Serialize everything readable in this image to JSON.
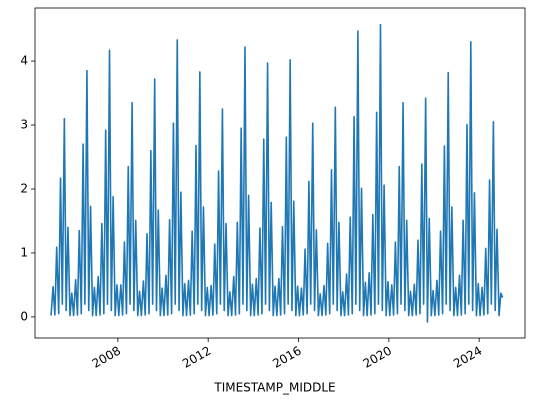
{
  "chart_data": {
    "type": "line",
    "x_label": "TIMESTAMP_MIDDLE",
    "color": "#1f77b4",
    "xlim": [
      2004.33,
      2026.03
    ],
    "xticks": [
      2008,
      2012,
      2016,
      2020,
      2024
    ],
    "ylim": [
      -0.33,
      4.83
    ],
    "yticks": [
      0,
      1,
      2,
      3,
      4
    ],
    "grid": false,
    "x": [
      2005.04,
      2005.13,
      2005.21,
      2005.29,
      2005.38,
      2005.46,
      2005.54,
      2005.63,
      2005.71,
      2005.79,
      2005.88,
      2005.96,
      2006.04,
      2006.13,
      2006.21,
      2006.29,
      2006.38,
      2006.46,
      2006.54,
      2006.63,
      2006.71,
      2006.79,
      2006.88,
      2006.96,
      2007.04,
      2007.13,
      2007.21,
      2007.29,
      2007.38,
      2007.46,
      2007.54,
      2007.63,
      2007.71,
      2007.79,
      2007.88,
      2007.96,
      2008.04,
      2008.13,
      2008.21,
      2008.29,
      2008.38,
      2008.46,
      2008.54,
      2008.63,
      2008.71,
      2008.79,
      2008.88,
      2008.96,
      2009.04,
      2009.13,
      2009.21,
      2009.29,
      2009.38,
      2009.46,
      2009.54,
      2009.63,
      2009.71,
      2009.79,
      2009.88,
      2009.96,
      2010.04,
      2010.13,
      2010.21,
      2010.29,
      2010.38,
      2010.46,
      2010.54,
      2010.63,
      2010.71,
      2010.79,
      2010.88,
      2010.96,
      2011.04,
      2011.13,
      2011.21,
      2011.29,
      2011.38,
      2011.46,
      2011.54,
      2011.63,
      2011.71,
      2011.79,
      2011.88,
      2011.96,
      2012.04,
      2012.13,
      2012.21,
      2012.29,
      2012.38,
      2012.46,
      2012.54,
      2012.63,
      2012.71,
      2012.79,
      2012.88,
      2012.96,
      2013.04,
      2013.13,
      2013.21,
      2013.29,
      2013.38,
      2013.46,
      2013.54,
      2013.63,
      2013.71,
      2013.79,
      2013.88,
      2013.96,
      2014.04,
      2014.13,
      2014.21,
      2014.29,
      2014.38,
      2014.46,
      2014.54,
      2014.63,
      2014.71,
      2014.79,
      2014.88,
      2014.96,
      2015.04,
      2015.13,
      2015.21,
      2015.29,
      2015.38,
      2015.46,
      2015.54,
      2015.63,
      2015.71,
      2015.79,
      2015.88,
      2015.96,
      2016.04,
      2016.13,
      2016.21,
      2016.29,
      2016.38,
      2016.46,
      2016.54,
      2016.63,
      2016.71,
      2016.79,
      2016.88,
      2016.96,
      2017.04,
      2017.13,
      2017.21,
      2017.29,
      2017.38,
      2017.46,
      2017.54,
      2017.63,
      2017.71,
      2017.79,
      2017.88,
      2017.96,
      2018.04,
      2018.13,
      2018.21,
      2018.29,
      2018.38,
      2018.46,
      2018.54,
      2018.63,
      2018.71,
      2018.79,
      2018.88,
      2018.96,
      2019.04,
      2019.13,
      2019.21,
      2019.29,
      2019.38,
      2019.46,
      2019.54,
      2019.63,
      2019.71,
      2019.79,
      2019.88,
      2019.96,
      2020.04,
      2020.13,
      2020.21,
      2020.29,
      2020.38,
      2020.46,
      2020.54,
      2020.63,
      2020.71,
      2020.79,
      2020.88,
      2020.96,
      2021.04,
      2021.13,
      2021.21,
      2021.29,
      2021.38,
      2021.46,
      2021.54,
      2021.63,
      2021.71,
      2021.79,
      2021.88,
      2021.96,
      2022.04,
      2022.13,
      2022.21,
      2022.29,
      2022.38,
      2022.46,
      2022.54,
      2022.63,
      2022.71,
      2022.79,
      2022.88,
      2022.96,
      2023.04,
      2023.13,
      2023.21,
      2023.29,
      2023.38,
      2023.46,
      2023.54,
      2023.63,
      2023.71,
      2023.79,
      2023.88,
      2023.96,
      2024.04,
      2024.13,
      2024.21,
      2024.29,
      2024.38,
      2024.46,
      2024.54,
      2024.63,
      2024.71,
      2024.79,
      2024.88,
      2024.96,
      2025.04
    ],
    "values": [
      0.02,
      0.47,
      0.03,
      1.09,
      0.05,
      2.17,
      0.2,
      3.1,
      0.1,
      1.4,
      0.02,
      0.37,
      0.02,
      0.58,
      0.03,
      1.35,
      0.05,
      2.7,
      0.2,
      3.85,
      0.1,
      1.73,
      0.02,
      0.46,
      0.02,
      0.63,
      0.03,
      1.46,
      0.05,
      2.92,
      0.2,
      4.17,
      0.1,
      1.88,
      0.02,
      0.5,
      0.02,
      0.5,
      0.03,
      1.17,
      0.05,
      2.35,
      0.2,
      3.35,
      0.1,
      1.51,
      0.02,
      0.4,
      0.02,
      0.56,
      0.03,
      1.3,
      0.05,
      2.6,
      0.2,
      3.72,
      0.1,
      1.67,
      0.02,
      0.45,
      0.02,
      0.65,
      0.03,
      1.52,
      0.05,
      3.03,
      0.2,
      4.33,
      0.1,
      1.95,
      0.02,
      0.52,
      0.02,
      0.57,
      0.03,
      1.34,
      0.05,
      2.68,
      0.2,
      3.83,
      0.1,
      1.72,
      0.02,
      0.46,
      0.02,
      0.49,
      0.03,
      1.14,
      0.05,
      2.28,
      0.2,
      3.25,
      0.1,
      1.46,
      0.02,
      0.39,
      0.02,
      0.63,
      0.03,
      1.48,
      0.05,
      2.95,
      0.2,
      4.22,
      0.1,
      1.9,
      0.02,
      0.51,
      0.02,
      0.6,
      0.03,
      1.39,
      0.05,
      2.78,
      0.2,
      3.97,
      0.1,
      1.79,
      0.02,
      0.48,
      0.02,
      0.6,
      0.03,
      1.41,
      0.05,
      2.81,
      0.2,
      4.02,
      0.1,
      1.81,
      0.02,
      0.48,
      0.02,
      0.45,
      0.03,
      1.06,
      0.05,
      2.12,
      0.2,
      3.03,
      0.1,
      1.36,
      0.02,
      0.36,
      0.02,
      0.49,
      0.03,
      1.15,
      0.05,
      2.3,
      0.2,
      3.28,
      0.1,
      1.48,
      0.02,
      0.39,
      0.02,
      0.67,
      0.03,
      1.56,
      0.05,
      3.13,
      0.2,
      4.47,
      0.1,
      2.01,
      0.02,
      0.54,
      0.02,
      0.69,
      0.03,
      1.6,
      0.05,
      3.2,
      0.2,
      4.57,
      0.1,
      2.06,
      0.02,
      0.55,
      0.02,
      0.5,
      0.03,
      1.17,
      0.05,
      2.35,
      0.2,
      3.35,
      0.1,
      1.51,
      0.02,
      0.4,
      0.02,
      0.51,
      0.03,
      1.2,
      0.05,
      2.39,
      0.2,
      3.42,
      -0.08,
      1.54,
      0.02,
      0.41,
      0.02,
      0.57,
      0.03,
      1.34,
      0.05,
      2.67,
      0.2,
      3.82,
      0.1,
      1.72,
      0.02,
      0.46,
      0.02,
      0.65,
      0.03,
      1.51,
      0.05,
      3.01,
      0.2,
      4.3,
      0.1,
      1.94,
      0.02,
      0.52,
      0.02,
      0.46,
      0.03,
      1.07,
      0.05,
      2.14,
      0.2,
      3.05,
      0.1,
      1.37,
      0.02,
      0.37,
      0.3
    ]
  }
}
